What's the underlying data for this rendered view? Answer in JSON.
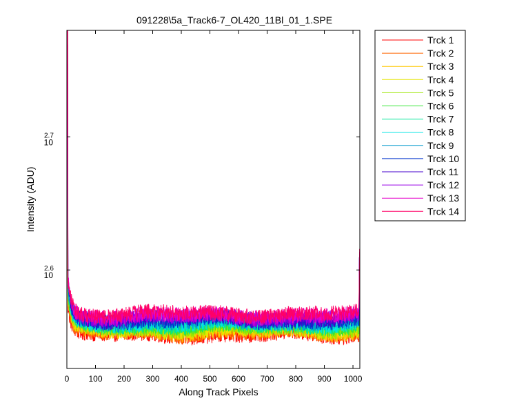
{
  "chart_data": {
    "type": "line",
    "title": "091228\\5a_Track6-7_OL420_11Bl_01_1.SPE",
    "xlabel": "Along Track Pixels",
    "ylabel": "Intensity (ADU)",
    "x_range": [
      0,
      1024
    ],
    "xlim": [
      0,
      1024
    ],
    "ylim_log10": [
      2.526,
      2.78
    ],
    "y_scale": "log",
    "grid": false,
    "legend_position": "outside-right",
    "x_ticks": [
      {
        "value": 0,
        "label": "0"
      },
      {
        "value": 100,
        "label": "100"
      },
      {
        "value": 200,
        "label": "200"
      },
      {
        "value": 300,
        "label": "300"
      },
      {
        "value": 400,
        "label": "400"
      },
      {
        "value": 500,
        "label": "500"
      },
      {
        "value": 600,
        "label": "600"
      },
      {
        "value": 700,
        "label": "700"
      },
      {
        "value": 800,
        "label": "800"
      },
      {
        "value": 900,
        "label": "900"
      },
      {
        "value": 1000,
        "label": "1000"
      }
    ],
    "y_ticks": [
      {
        "exp": 2.6,
        "base": "10",
        "sup": "2.6"
      },
      {
        "exp": 2.7,
        "base": "10",
        "sup": "2.7"
      }
    ],
    "series": [
      {
        "name": "Trck 1",
        "color": "#ff0000",
        "baseline": 356,
        "noise": 5
      },
      {
        "name": "Trck 2",
        "color": "#ff6600",
        "baseline": 357,
        "noise": 5
      },
      {
        "name": "Trck 3",
        "color": "#ffc800",
        "baseline": 358,
        "noise": 5
      },
      {
        "name": "Trck 4",
        "color": "#e6e600",
        "baseline": 359,
        "noise": 5
      },
      {
        "name": "Trck 5",
        "color": "#99e600",
        "baseline": 360,
        "noise": 5
      },
      {
        "name": "Trck 6",
        "color": "#33e633",
        "baseline": 361,
        "noise": 5
      },
      {
        "name": "Trck 7",
        "color": "#00e699",
        "baseline": 362,
        "noise": 5
      },
      {
        "name": "Trck 8",
        "color": "#00e6e6",
        "baseline": 363,
        "noise": 5
      },
      {
        "name": "Trck 9",
        "color": "#0099cc",
        "baseline": 364,
        "noise": 5
      },
      {
        "name": "Trck 10",
        "color": "#0033cc",
        "baseline": 365,
        "noise": 5
      },
      {
        "name": "Trck 11",
        "color": "#4400cc",
        "baseline": 366,
        "noise": 5
      },
      {
        "name": "Trck 12",
        "color": "#9900e6",
        "baseline": 367,
        "noise": 5
      },
      {
        "name": "Trck 13",
        "color": "#e600cc",
        "baseline": 368,
        "noise": 5
      },
      {
        "name": "Trck 14",
        "color": "#ff0066",
        "baseline": 369,
        "noise": 5
      }
    ]
  }
}
